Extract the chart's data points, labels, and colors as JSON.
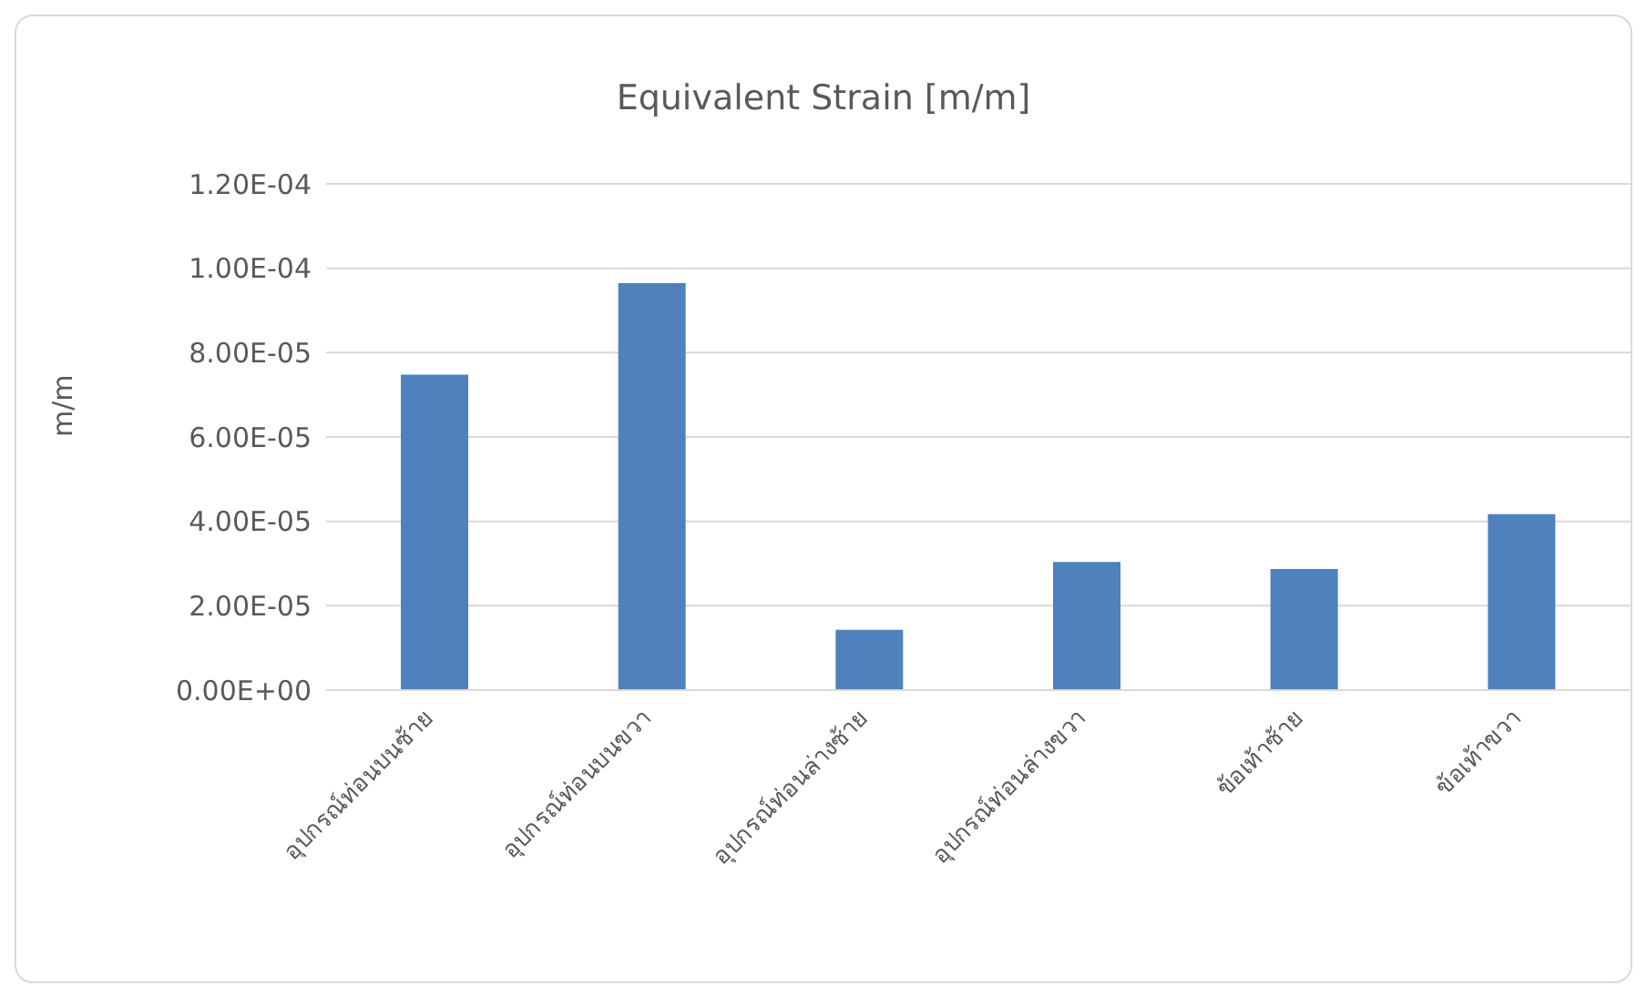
{
  "chart_data": {
    "type": "bar",
    "title": "Equivalent Strain [m/m]",
    "ylabel": "m/m",
    "categories": [
      "อุปกรณ์ท่อนบนซ้าย",
      "อุปกรณ์ท่อนบนขวา",
      "อุปกรณ์ท่อนล่างซ้าย",
      "อุปกรณ์ท่อนล่างขวา",
      "ข้อเท้าซ้าย",
      "ข้อเท้าขวา"
    ],
    "values": [
      7.48e-05,
      9.65e-05,
      1.43e-05,
      3.04e-05,
      2.87e-05,
      4.17e-05
    ],
    "color": "#4f81bd",
    "ylim": [
      0,
      0.00012
    ],
    "yticks": [
      {
        "value": 0,
        "label": "0.00E+00"
      },
      {
        "value": 2e-05,
        "label": "2.00E-05"
      },
      {
        "value": 4e-05,
        "label": "4.00E-05"
      },
      {
        "value": 6e-05,
        "label": "6.00E-05"
      },
      {
        "value": 8e-05,
        "label": "8.00E-05"
      },
      {
        "value": 0.0001,
        "label": "1.00E-04"
      },
      {
        "value": 0.00012,
        "label": "1.20E-04"
      }
    ],
    "grid": "y",
    "legend": false
  }
}
